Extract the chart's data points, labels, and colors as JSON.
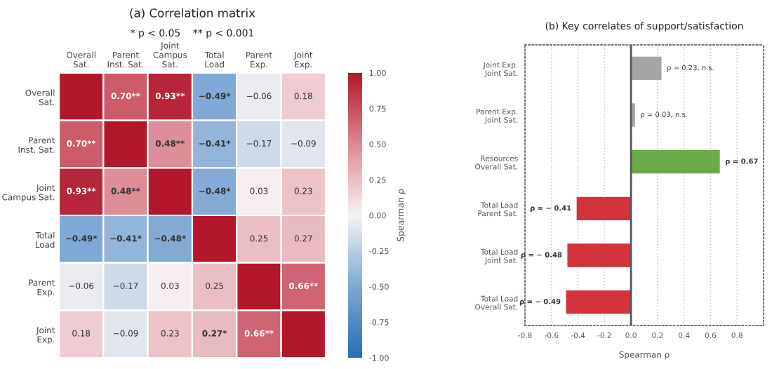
{
  "chart_data": [
    {
      "type": "heatmap",
      "title": "(a) Correlation matrix",
      "subtitle": "* p < 0.05    ** p < 0.001",
      "clabel": "Spearman ρ",
      "categories": [
        "Overall\nSat.",
        "Parent\nInst. Sat.",
        "Joint\nCampus\nSat.",
        "Total\nLoad",
        "Parent\nExp.",
        "Joint\nExp."
      ],
      "y_categories": [
        "Overall\nSat.",
        "Parent\nInst. Sat.",
        "Joint\nCampus Sat.",
        "Total\nLoad",
        "Parent\nExp.",
        "Joint\nExp."
      ],
      "cells": [
        [
          1.0,
          0.7,
          0.93,
          -0.49,
          -0.06,
          0.18
        ],
        [
          0.7,
          1.0,
          0.48,
          -0.41,
          -0.17,
          -0.09
        ],
        [
          0.93,
          0.48,
          1.0,
          -0.48,
          0.03,
          0.23
        ],
        [
          -0.49,
          -0.41,
          -0.48,
          1.0,
          0.25,
          0.27
        ],
        [
          -0.06,
          -0.17,
          0.03,
          0.25,
          1.0,
          0.66
        ],
        [
          0.18,
          -0.09,
          0.23,
          0.27,
          0.66,
          1.0
        ]
      ],
      "cell_labels": [
        [
          null,
          "0.70**",
          "0.93**",
          "−0.49*",
          "−0.06",
          "0.18"
        ],
        [
          "0.70**",
          null,
          "0.48**",
          "−0.41*",
          "−0.17",
          "−0.09"
        ],
        [
          "0.93**",
          "0.48**",
          null,
          "−0.48*",
          "0.03",
          "0.23"
        ],
        [
          "−0.49*",
          "−0.41*",
          "−0.48*",
          null,
          "0.25",
          "0.27"
        ],
        [
          "−0.06",
          "−0.17",
          "0.03",
          "0.25",
          null,
          "0.66**"
        ],
        [
          "0.18",
          "−0.09",
          "0.23",
          "0.27*",
          "0.66**",
          null
        ]
      ],
      "clim": [
        -1.0,
        1.0
      ],
      "cticks": [
        {
          "value": 1.0,
          "label": "1.00"
        },
        {
          "value": 0.75,
          "label": "0.75"
        },
        {
          "value": 0.5,
          "label": "0.50"
        },
        {
          "value": 0.25,
          "label": "0.25"
        },
        {
          "value": 0.0,
          "label": "0.00"
        },
        {
          "value": -0.25,
          "label": "-0.25"
        },
        {
          "value": -0.5,
          "label": "-0.50"
        },
        {
          "value": -0.75,
          "label": "-0.75"
        },
        {
          "value": -1.0,
          "label": "-1.00"
        }
      ]
    },
    {
      "type": "bar",
      "orientation": "horizontal",
      "title": "(b) Key correlates of support/satisfaction",
      "xlabel": "Spearman ρ",
      "categories": [
        "Joint Exp.\nJoint Sat.",
        "Parent Exp.\nJoint Sat.",
        "Resources\nOverall Sat.",
        "Total Load\nParent Sat.",
        "Total Load\nJoint Sat.",
        "Total Load\nOverall Sat."
      ],
      "values": [
        0.23,
        0.03,
        0.67,
        -0.41,
        -0.48,
        -0.49
      ],
      "colors": [
        "#a5a5a5",
        "#a5a5a5",
        "#6aaa4a",
        "#d2323a",
        "#d2323a",
        "#d2323a"
      ],
      "value_labels": [
        "ρ = 0.23, n.s.",
        "ρ = 0.03, n.s.",
        "ρ = 0.67",
        "ρ = − 0.41",
        "ρ = − 0.48",
        "ρ = − 0.49"
      ],
      "xlim": [
        -0.8,
        1.0
      ],
      "xticks": [
        -0.8,
        -0.6,
        -0.4,
        -0.2,
        {
          "value": 0,
          "label": "0.0"
        },
        0.2,
        0.4,
        0.6,
        0.8
      ],
      "ref_lines": [
        {
          "axis": "x",
          "value": 0,
          "label": null,
          "color": "#555555"
        }
      ],
      "grid": "x"
    }
  ]
}
